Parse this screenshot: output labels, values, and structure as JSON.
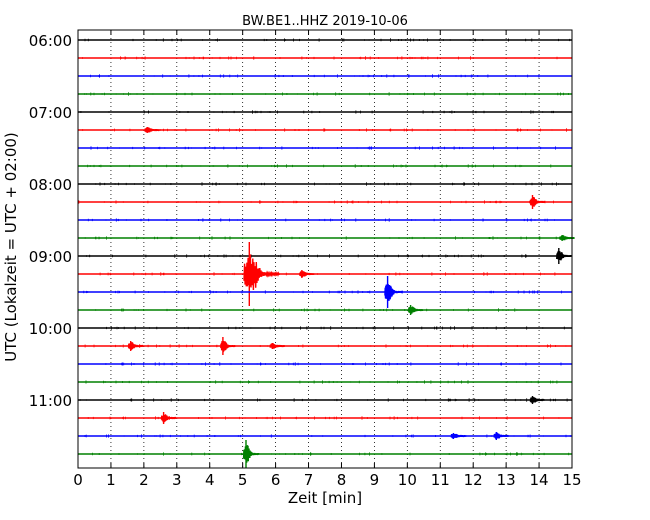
{
  "chart_data": {
    "type": "line",
    "title": "BW.BE1..HHZ 2019-10-06",
    "xlabel": "Zeit  [min]",
    "ylabel": "UTC (Lokalzeit = UTC + 02:00)",
    "xlim": [
      0,
      15
    ],
    "x_ticks": [
      "0",
      "1",
      "2",
      "3",
      "4",
      "5",
      "6",
      "7",
      "8",
      "9",
      "10",
      "11",
      "12",
      "13",
      "14",
      "15"
    ],
    "y_tick_labels": [
      "06:00",
      "07:00",
      "08:00",
      "09:00",
      "10:00",
      "11:00"
    ],
    "trace_colors": [
      "#000000",
      "#ff0000",
      "#0000ff",
      "#008000"
    ],
    "grid": "vertical dotted",
    "traces": [
      {
        "start": "06:00",
        "color": "#000000",
        "events": []
      },
      {
        "start": "06:15",
        "color": "#ff0000",
        "events": []
      },
      {
        "start": "06:30",
        "color": "#0000ff",
        "events": []
      },
      {
        "start": "06:45",
        "color": "#008000",
        "events": []
      },
      {
        "start": "07:00",
        "color": "#000000",
        "events": []
      },
      {
        "start": "07:15",
        "color": "#ff0000",
        "events": [
          {
            "t": 2.1,
            "amp": 3
          }
        ]
      },
      {
        "start": "07:30",
        "color": "#0000ff",
        "events": []
      },
      {
        "start": "07:45",
        "color": "#008000",
        "events": []
      },
      {
        "start": "08:00",
        "color": "#000000",
        "events": []
      },
      {
        "start": "08:15",
        "color": "#ff0000",
        "events": [
          {
            "t": 13.8,
            "amp": 7
          }
        ]
      },
      {
        "start": "08:30",
        "color": "#0000ff",
        "events": []
      },
      {
        "start": "08:45",
        "color": "#008000",
        "events": [
          {
            "t": 14.7,
            "amp": 3
          }
        ]
      },
      {
        "start": "09:00",
        "color": "#000000",
        "events": [
          {
            "t": 14.6,
            "amp": 8
          }
        ]
      },
      {
        "start": "09:15",
        "color": "#ff0000",
        "events": [
          {
            "t": 5.2,
            "amp": 32
          },
          {
            "t": 6.8,
            "amp": 4
          }
        ]
      },
      {
        "start": "09:30",
        "color": "#0000ff",
        "events": [
          {
            "t": 9.4,
            "amp": 16
          }
        ]
      },
      {
        "start": "09:45",
        "color": "#008000",
        "events": [
          {
            "t": 10.1,
            "amp": 5
          }
        ]
      },
      {
        "start": "10:00",
        "color": "#000000",
        "events": []
      },
      {
        "start": "10:15",
        "color": "#ff0000",
        "events": [
          {
            "t": 1.6,
            "amp": 5
          },
          {
            "t": 4.4,
            "amp": 9
          },
          {
            "t": 5.9,
            "amp": 3
          }
        ]
      },
      {
        "start": "10:30",
        "color": "#0000ff",
        "events": []
      },
      {
        "start": "10:45",
        "color": "#008000",
        "events": []
      },
      {
        "start": "11:00",
        "color": "#000000",
        "events": [
          {
            "t": 13.8,
            "amp": 4
          }
        ]
      },
      {
        "start": "11:15",
        "color": "#ff0000",
        "events": [
          {
            "t": 2.6,
            "amp": 6
          }
        ]
      },
      {
        "start": "11:30",
        "color": "#0000ff",
        "events": [
          {
            "t": 11.4,
            "amp": 3
          },
          {
            "t": 12.7,
            "amp": 4
          }
        ]
      },
      {
        "start": "11:45",
        "color": "#008000",
        "events": [
          {
            "t": 5.1,
            "amp": 14
          }
        ]
      }
    ]
  }
}
